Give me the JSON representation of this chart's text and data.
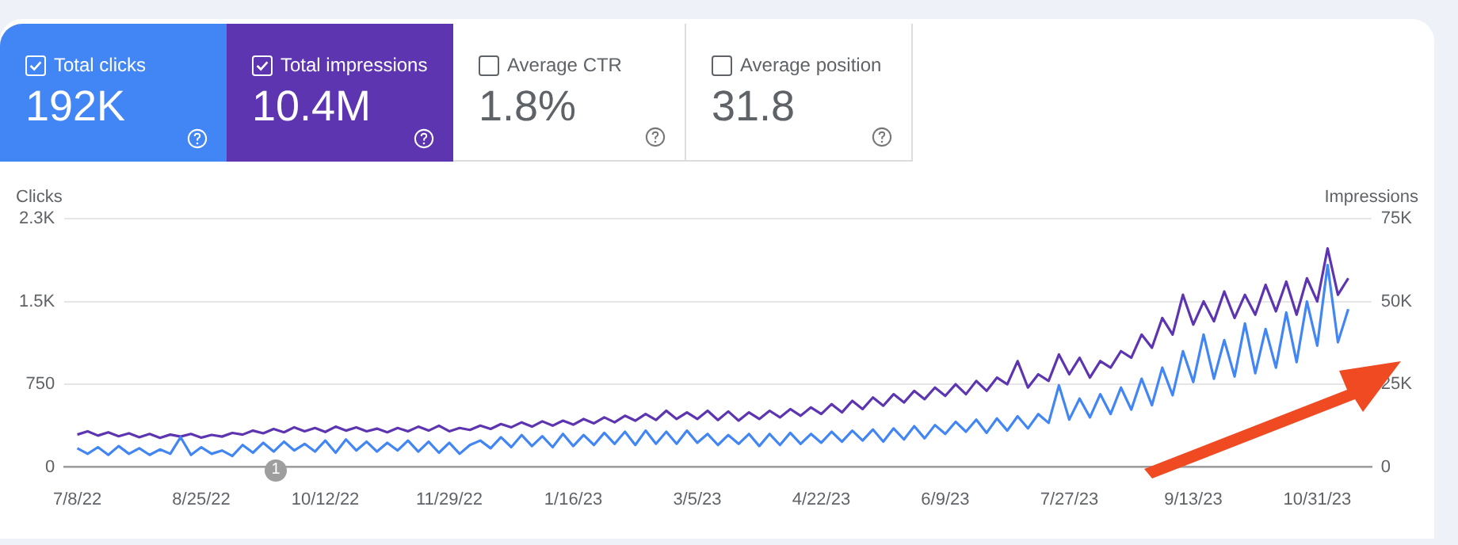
{
  "chart_data": {
    "type": "line",
    "ylabel": "Clicks",
    "y2label": "Impressions",
    "legend": "top left",
    "grid": "y",
    "marker": "none",
    "line_style": "solid",
    "annotations": [
      "192K",
      "10.4M",
      "Average CTR",
      "1.8%",
      "Average position",
      "31.8",
      "1"
    ],
    "x": [
      "2022-07-08",
      "2022-07-12",
      "2022-07-16",
      "2022-07-20",
      "2022-07-24",
      "2022-07-28",
      "2022-08-01",
      "2022-08-05",
      "2022-08-09",
      "2022-08-13",
      "2022-08-17",
      "2022-08-21",
      "2022-08-25",
      "2022-08-29",
      "2022-09-02",
      "2022-09-06",
      "2022-09-10",
      "2022-09-14",
      "2022-09-18",
      "2022-09-22",
      "2022-09-26",
      "2022-09-30",
      "2022-10-04",
      "2022-10-08",
      "2022-10-12",
      "2022-10-16",
      "2022-10-20",
      "2022-10-24",
      "2022-10-28",
      "2022-11-01",
      "2022-11-05",
      "2022-11-09",
      "2022-11-13",
      "2022-11-17",
      "2022-11-21",
      "2022-11-25",
      "2022-11-29",
      "2022-12-03",
      "2022-12-07",
      "2022-12-11",
      "2022-12-15",
      "2022-12-19",
      "2022-12-23",
      "2022-12-27",
      "2022-12-31",
      "2023-01-04",
      "2023-01-08",
      "2023-01-12",
      "2023-01-16",
      "2023-01-20",
      "2023-01-24",
      "2023-01-28",
      "2023-02-01",
      "2023-02-05",
      "2023-02-09",
      "2023-02-13",
      "2023-02-17",
      "2023-02-21",
      "2023-02-25",
      "2023-03-01",
      "2023-03-05",
      "2023-03-09",
      "2023-03-13",
      "2023-03-17",
      "2023-03-21",
      "2023-03-25",
      "2023-03-29",
      "2023-04-02",
      "2023-04-06",
      "2023-04-10",
      "2023-04-14",
      "2023-04-18",
      "2023-04-22",
      "2023-04-26",
      "2023-04-30",
      "2023-05-04",
      "2023-05-08",
      "2023-05-12",
      "2023-05-16",
      "2023-05-20",
      "2023-05-24",
      "2023-05-28",
      "2023-06-01",
      "2023-06-05",
      "2023-06-09",
      "2023-06-13",
      "2023-06-17",
      "2023-06-21",
      "2023-06-25",
      "2023-06-29",
      "2023-07-03",
      "2023-07-07",
      "2023-07-11",
      "2023-07-15",
      "2023-07-19",
      "2023-07-23",
      "2023-07-27",
      "2023-07-31",
      "2023-08-04",
      "2023-08-08",
      "2023-08-12",
      "2023-08-16",
      "2023-08-20",
      "2023-08-24",
      "2023-08-28",
      "2023-09-01",
      "2023-09-05",
      "2023-09-09",
      "2023-09-13",
      "2023-09-17",
      "2023-09-21",
      "2023-09-25",
      "2023-09-29",
      "2023-10-03",
      "2023-10-07",
      "2023-10-11",
      "2023-10-15",
      "2023-10-19",
      "2023-10-23",
      "2023-10-27",
      "2023-10-31",
      "2023-11-04",
      "2023-11-08",
      "2023-11-12"
    ],
    "xlim": [
      "2022-07-03",
      "2023-11-21"
    ],
    "xticks": [
      {
        "value": "2022-07-08",
        "label": "7/8/22"
      },
      {
        "value": "2022-08-25",
        "label": "8/25/22"
      },
      {
        "value": "2022-10-12",
        "label": "10/12/22"
      },
      {
        "value": "2022-11-29",
        "label": "11/29/22"
      },
      {
        "value": "2023-01-16",
        "label": "1/16/23"
      },
      {
        "value": "2023-03-05",
        "label": "3/5/23"
      },
      {
        "value": "2023-04-22",
        "label": "4/22/23"
      },
      {
        "value": "2023-06-09",
        "label": "6/9/23"
      },
      {
        "value": "2023-07-27",
        "label": "7/27/23"
      },
      {
        "value": "2023-09-13",
        "label": "9/13/23"
      },
      {
        "value": "2023-10-31",
        "label": "10/31/23"
      }
    ],
    "ylim": [
      0,
      2250
    ],
    "yticks": [
      0,
      750,
      {
        "value": 1500,
        "label": "1.5K"
      },
      {
        "value": 2250,
        "label": "2.3K"
      }
    ],
    "y2lim": [
      0,
      75000
    ],
    "y2ticks": [
      0,
      {
        "value": 25000,
        "label": "25K"
      },
      {
        "value": 50000,
        "label": "50K"
      },
      {
        "value": 75000,
        "label": "75K"
      }
    ],
    "series": [
      {
        "name": "Total clicks",
        "color": "#4285f4",
        "values": [
          170,
          120,
          180,
          110,
          190,
          120,
          170,
          110,
          160,
          120,
          270,
          110,
          180,
          120,
          150,
          100,
          200,
          130,
          220,
          140,
          230,
          150,
          210,
          140,
          240,
          130,
          250,
          150,
          230,
          140,
          220,
          150,
          240,
          140,
          230,
          130,
          220,
          120,
          200,
          240,
          170,
          270,
          180,
          290,
          190,
          280,
          180,
          300,
          190,
          290,
          200,
          310,
          210,
          320,
          200,
          330,
          210,
          320,
          210,
          330,
          220,
          300,
          200,
          290,
          210,
          300,
          190,
          300,
          200,
          310,
          210,
          300,
          220,
          320,
          230,
          330,
          240,
          340,
          230,
          350,
          250,
          370,
          260,
          380,
          300,
          410,
          320,
          430,
          310,
          440,
          330,
          460,
          350,
          480,
          400,
          740,
          430,
          620,
          450,
          660,
          480,
          720,
          520,
          800,
          560,
          900,
          650,
          1050,
          770,
          1200,
          800,
          1150,
          820,
          1300,
          850,
          1250,
          900,
          1400,
          950,
          1500,
          1100,
          1830,
          1130,
          1430
        ]
      },
      {
        "name": "Total impressions",
        "color": "#5e35b1",
        "axis": "y2",
        "values": [
          9800,
          10800,
          9500,
          10500,
          9300,
          10200,
          9000,
          10000,
          8800,
          9800,
          9200,
          10000,
          8900,
          9700,
          9200,
          10300,
          9800,
          11000,
          10200,
          11500,
          10500,
          12000,
          10800,
          11800,
          10600,
          12200,
          11000,
          12000,
          10800,
          11600,
          10500,
          11800,
          10800,
          12200,
          11000,
          12500,
          10800,
          11800,
          11200,
          12500,
          11500,
          13000,
          12000,
          13500,
          12200,
          13800,
          12500,
          14000,
          12800,
          14500,
          13200,
          15000,
          13500,
          15500,
          14000,
          16000,
          14200,
          17000,
          14500,
          16500,
          14500,
          17000,
          14200,
          16800,
          14000,
          16500,
          14500,
          17000,
          15000,
          17500,
          15500,
          18000,
          16000,
          19000,
          16500,
          20000,
          17500,
          21000,
          18500,
          22000,
          19500,
          23000,
          20500,
          24000,
          21500,
          25000,
          22000,
          26000,
          23000,
          27000,
          25000,
          32000,
          24000,
          28000,
          26000,
          34000,
          28000,
          33000,
          27000,
          32000,
          30000,
          35000,
          33000,
          40000,
          36000,
          45000,
          40000,
          52000,
          43000,
          50000,
          44000,
          53000,
          45000,
          52000,
          46000,
          55000,
          47000,
          56000,
          46000,
          57000,
          50000,
          66000,
          52000,
          57000
        ]
      }
    ]
  }
}
